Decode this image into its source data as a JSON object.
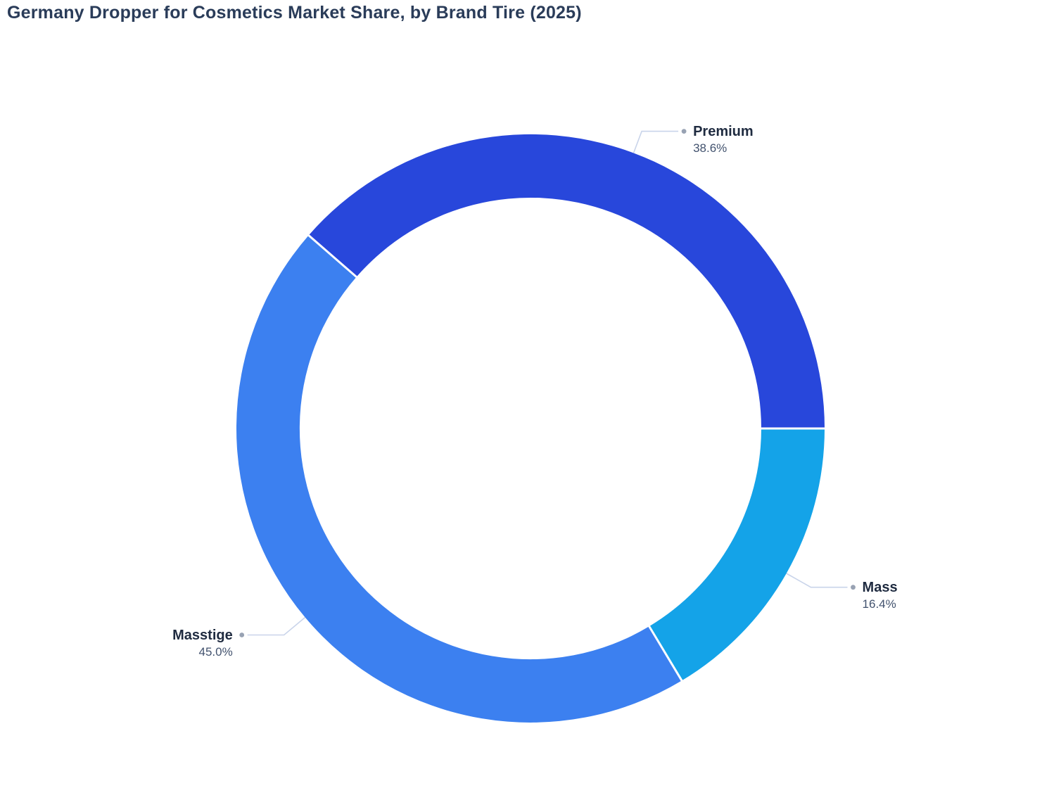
{
  "title": "Germany Dropper for Cosmetics Market Share, by Brand Tire (2025)",
  "chart_data": {
    "type": "pie",
    "subtype": "donut",
    "title": "Germany Dropper for Cosmetics Market Share, by Brand Tire (2025)",
    "categories": [
      "Premium",
      "Mass",
      "Masstige"
    ],
    "values": [
      38.6,
      16.4,
      45.0
    ],
    "value_labels": [
      "38.6%",
      "16.4%",
      "45.0%"
    ],
    "colors": [
      "#2847DB",
      "#14A3E8",
      "#3C80F0"
    ],
    "hole_ratio": 0.785,
    "start_angle_clockwise_from_top": -48.96,
    "direction": "clockwise",
    "legend": "none",
    "labels_position": "outside-with-leader-lines",
    "leader_line_color": "#C9D4EA",
    "leader_dot_color": "#98A2B3",
    "separator_color": "#FFFFFF",
    "title_color": "#2A3C59",
    "label_name_color": "#1F2B40",
    "label_value_color": "#42526E",
    "background_color": "#FFFFFF"
  }
}
